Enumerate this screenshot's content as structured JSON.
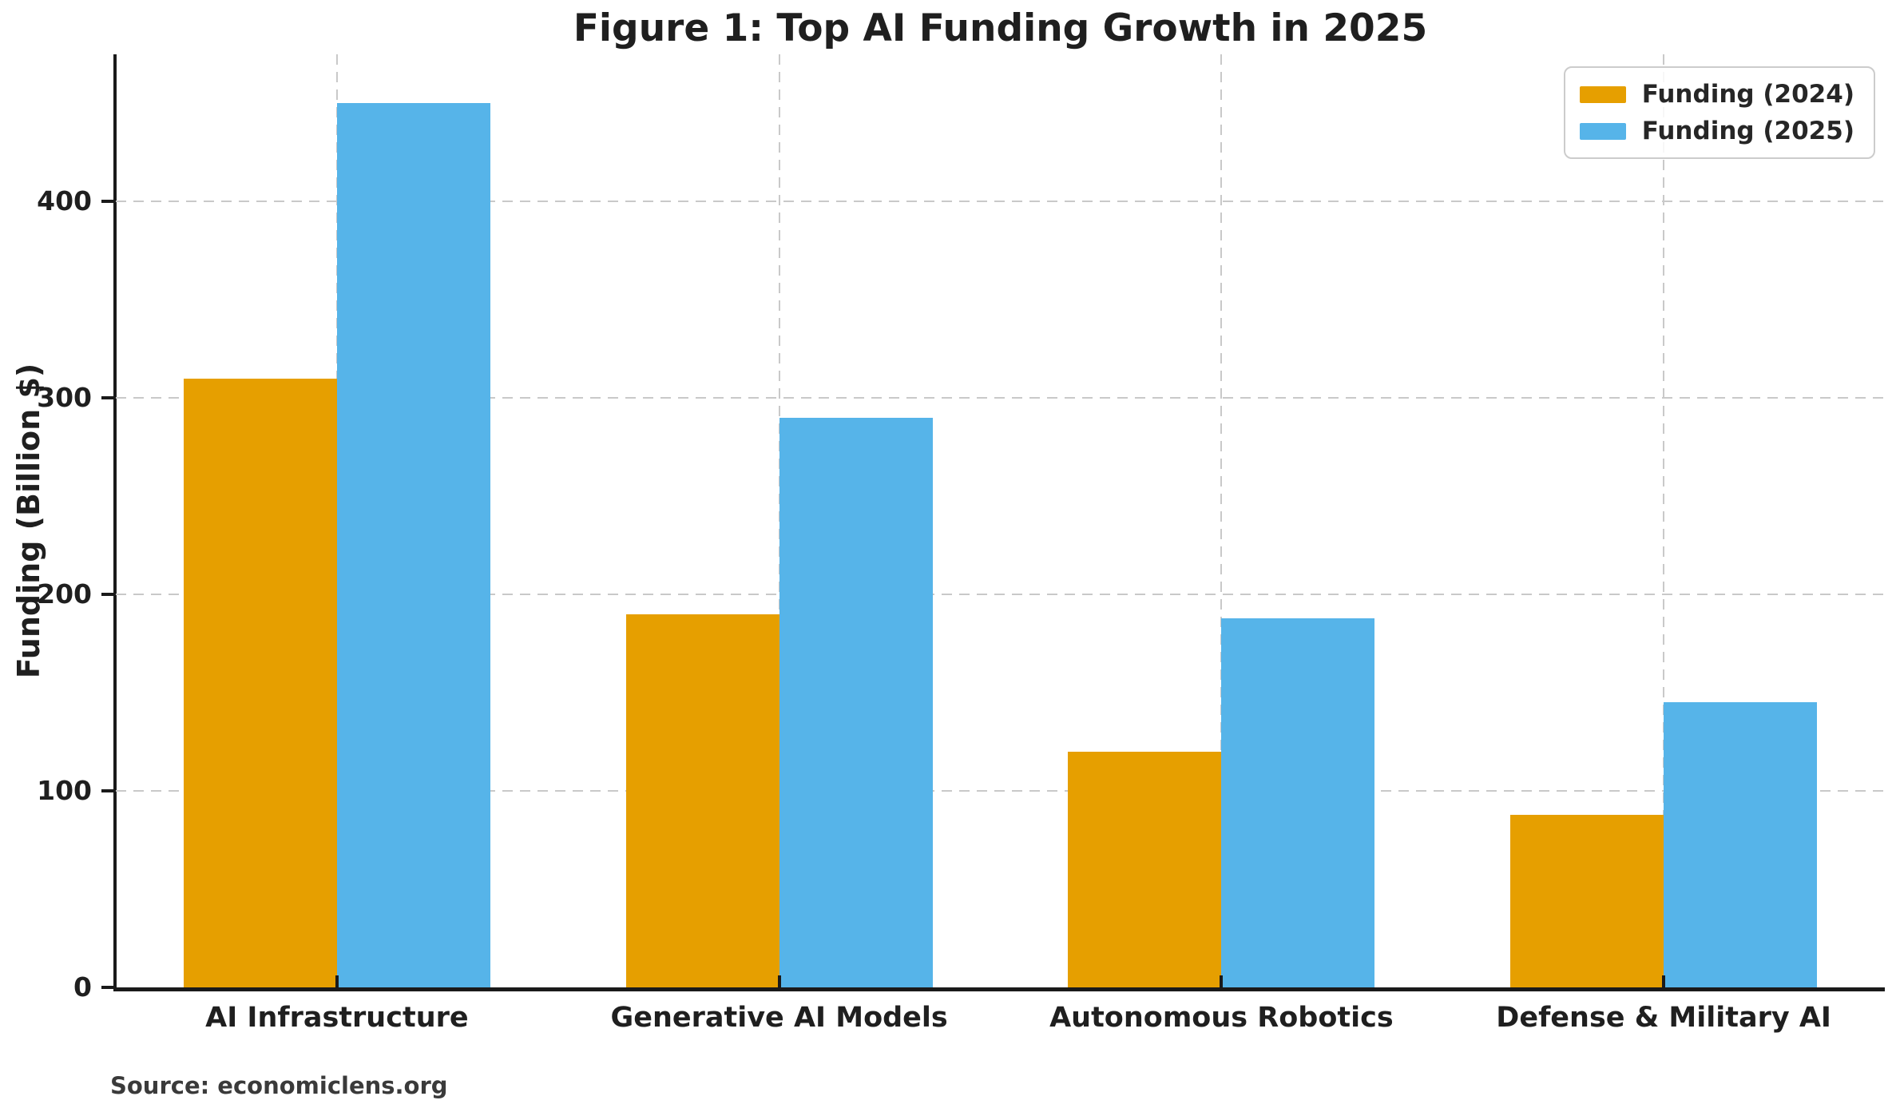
{
  "figure": {
    "title": "Figure 1: Top AI Funding Growth in 2025",
    "source": "Source: economiclens.org"
  },
  "chart_data": {
    "type": "bar",
    "title": "Figure 1: Top AI Funding Growth in 2025",
    "categories": [
      "AI Infrastructure",
      "Generative AI Models",
      "Autonomous Robotics",
      "Defense & Military AI"
    ],
    "series": [
      {
        "name": "Funding (2024)",
        "color": "#E69F00",
        "values": [
          310,
          190,
          120,
          88
        ]
      },
      {
        "name": "Funding (2025)",
        "color": "#56B4E9",
        "values": [
          450,
          290,
          188,
          145
        ]
      }
    ],
    "xlabel": "",
    "ylabel": "Funding (Billion $)",
    "ylim": [
      0,
      475
    ],
    "yticks": [
      0,
      100,
      200,
      300,
      400
    ],
    "grid": true,
    "grid_style": "dashed",
    "legend_position": "upper right",
    "source": "Source: economiclens.org",
    "colors": {
      "axis": "#1A1A1A",
      "grid": "#C9C9C9",
      "text": "#1F1F1F",
      "source_text": "#3A3A3A",
      "legend_border": "#CCCCCC",
      "background": "#FFFFFF"
    }
  }
}
